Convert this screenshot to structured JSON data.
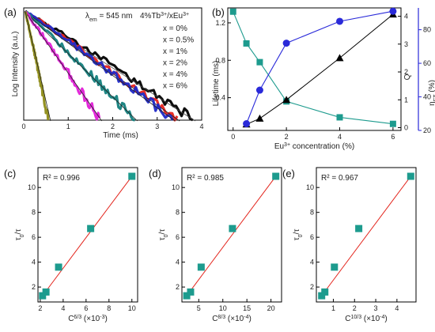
{
  "chart_data": [
    {
      "id": "a",
      "type": "line",
      "panel_label": "(a)",
      "xlabel": "Time (ms)",
      "ylabel": "Log Intensity (a.u.)",
      "x_ticks": [
        "0",
        "1",
        "2",
        "3",
        "4"
      ],
      "xlim": [
        0,
        4
      ],
      "y_scale": "log",
      "annotation": "λem = 545 nm",
      "legend_title": "4%Tb3+/xEu3+",
      "legend_placement": "top-right",
      "series": [
        {
          "name": "x = 0%",
          "color": "#000000",
          "end_time": 3.8
        },
        {
          "name": "x = 0.5%",
          "color": "#e8221c",
          "end_time": 3.45
        },
        {
          "name": "x = 1%",
          "color": "#2029c8",
          "end_time": 3.35
        },
        {
          "name": "x = 2%",
          "color": "#137f7d",
          "end_time": 2.5
        },
        {
          "name": "x = 4%",
          "color": "#e21fd8",
          "end_time": 1.7
        },
        {
          "name": "x = 6%",
          "color": "#8d8b16",
          "end_time": 0.55
        }
      ]
    },
    {
      "id": "b",
      "type": "line",
      "panel_label": "(b)",
      "xlabel": "Eu3+ concentration (%)",
      "ylabel_left": "Lifetime (ms)",
      "ylabel_right1": "Q",
      "ylabel_right2": "ηET (%)",
      "x_ticks": [
        "0",
        "2",
        "4",
        "6"
      ],
      "xlim": [
        -0.2,
        6.3
      ],
      "lifetime": {
        "x": [
          0,
          0.5,
          1,
          2,
          4,
          6
        ],
        "y": [
          1.32,
          0.98,
          0.78,
          0.36,
          0.19,
          0.12
        ],
        "ylim": [
          0.05,
          1.36
        ],
        "ticks": [
          "0.4",
          "0.8",
          "1.2"
        ],
        "color": "#1d9b8e"
      },
      "Q": {
        "x": [
          0.5,
          1,
          2,
          4,
          6
        ],
        "y": [
          0.12,
          0.33,
          1.0,
          2.5,
          4.07
        ],
        "ylim": [
          -0.1,
          4.3
        ],
        "ticks": [
          "0",
          "1",
          "2",
          "3",
          "4"
        ],
        "color": "#000000"
      },
      "eta": {
        "x": [
          0.5,
          1,
          2,
          4,
          6
        ],
        "y": [
          24,
          44,
          72,
          85,
          91
        ],
        "ylim": [
          20,
          93
        ],
        "ticks": [
          "20",
          "40",
          "60",
          "80"
        ],
        "color": "#2a2ad9"
      }
    },
    {
      "id": "c",
      "type": "scatter",
      "panel_label": "(c)",
      "annotation": "R² = 0.996",
      "xlabel": "C6/3 (×10-3)",
      "ylabel": "τ0/τ",
      "x": [
        2.2,
        2.5,
        3.6,
        6.4,
        10.0
      ],
      "y": [
        1.3,
        1.6,
        3.6,
        6.7,
        10.9
      ],
      "xlim": [
        1.8,
        10.5
      ],
      "ylim": [
        0.8,
        11.6
      ],
      "x_ticks": [
        "2",
        "4",
        "6",
        "8",
        "10"
      ],
      "y_ticks": [
        "2",
        "4",
        "6",
        "8",
        "10"
      ],
      "fit": [
        [
          2.2,
          1.3
        ],
        [
          10.0,
          10.9
        ]
      ]
    },
    {
      "id": "d",
      "type": "scatter",
      "panel_label": "(d)",
      "annotation": "R² = 0.985",
      "xlabel": "C8/3 (×10-4)",
      "ylabel": "τ0/τ",
      "x": [
        2.5,
        3.3,
        5.5,
        12.0,
        21.0
      ],
      "y": [
        1.3,
        1.6,
        3.6,
        6.7,
        10.9
      ],
      "xlim": [
        1.5,
        22.2
      ],
      "ylim": [
        0.8,
        11.6
      ],
      "x_ticks": [
        "5",
        "10",
        "15",
        "20"
      ],
      "y_ticks": [
        "2",
        "4",
        "6",
        "8",
        "10"
      ],
      "fit": [
        [
          2.5,
          1.3
        ],
        [
          21.0,
          10.9
        ]
      ]
    },
    {
      "id": "e",
      "type": "scatter",
      "panel_label": "(e)",
      "annotation": "R² = 0.967",
      "xlabel": "C10/3 (×10-4)",
      "ylabel": "τ0/τ",
      "x": [
        0.45,
        0.6,
        1.05,
        2.2,
        4.65
      ],
      "y": [
        1.3,
        1.6,
        3.6,
        6.7,
        10.9
      ],
      "xlim": [
        0.2,
        4.9
      ],
      "ylim": [
        0.8,
        11.6
      ],
      "x_ticks": [
        "1",
        "2",
        "3",
        "4"
      ],
      "y_ticks": [
        "2",
        "4",
        "6",
        "8",
        "10"
      ],
      "fit": [
        [
          0.45,
          1.3
        ],
        [
          4.65,
          10.9
        ]
      ]
    }
  ]
}
